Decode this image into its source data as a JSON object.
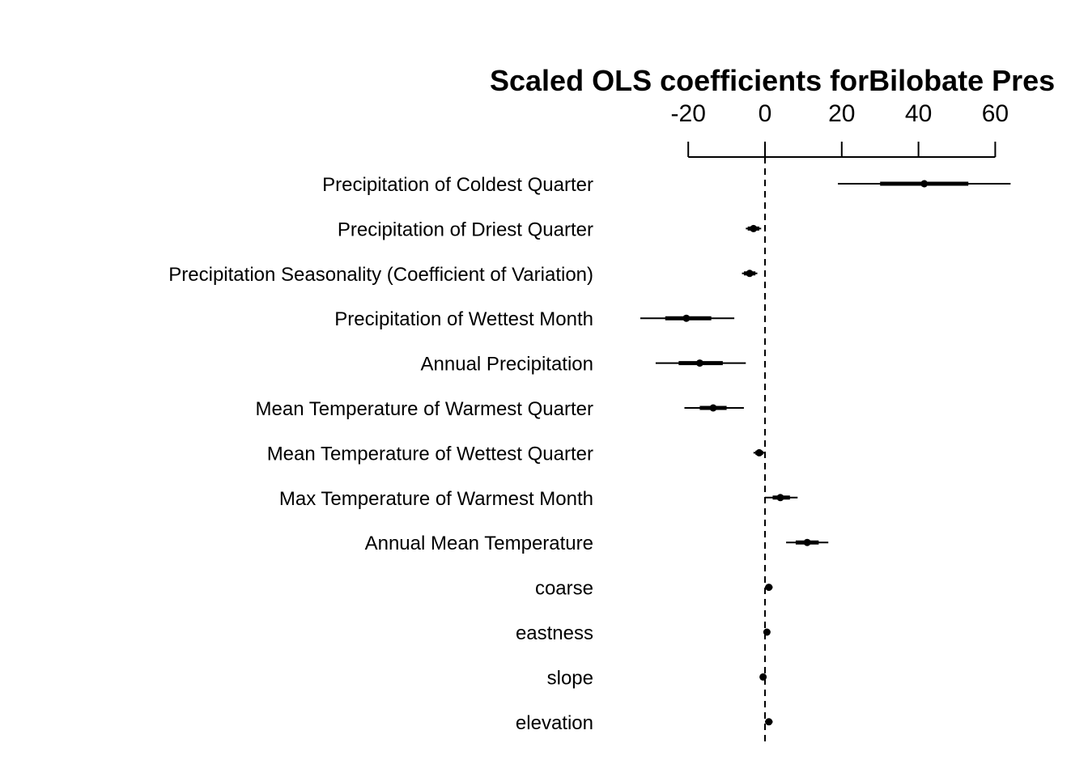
{
  "chart_data": {
    "type": "coefficient-plot",
    "title": "Scaled OLS coefficients forBilobate Pres",
    "x_ticks": [
      -20,
      0,
      20,
      40,
      60
    ],
    "reference_line": 0,
    "items": [
      {
        "label": "Precipitation of Coldest Quarter",
        "estimate": 41.5,
        "inner": [
          30,
          53
        ],
        "outer": [
          19,
          64
        ]
      },
      {
        "label": "Precipitation of Driest Quarter",
        "estimate": -3,
        "inner": [
          -4.5,
          -1.5
        ],
        "outer": [
          -5,
          -1
        ]
      },
      {
        "label": "Precipitation Seasonality (Coefficient of Variation)",
        "estimate": -4,
        "inner": [
          -5.5,
          -2.5
        ],
        "outer": [
          -6,
          -2
        ]
      },
      {
        "label": "Precipitation of Wettest Month",
        "estimate": -20.5,
        "inner": [
          -26,
          -14
        ],
        "outer": [
          -32.5,
          -8
        ]
      },
      {
        "label": "Annual Precipitation",
        "estimate": -17,
        "inner": [
          -22.5,
          -11
        ],
        "outer": [
          -28.5,
          -5
        ]
      },
      {
        "label": "Mean Temperature of Warmest Quarter",
        "estimate": -13.5,
        "inner": [
          -17,
          -10
        ],
        "outer": [
          -21,
          -5.5
        ]
      },
      {
        "label": "Mean Temperature of Wettest Quarter",
        "estimate": -1.5,
        "inner": [
          -2.5,
          -0.5
        ],
        "outer": [
          -3,
          0
        ]
      },
      {
        "label": "Max Temperature of Warmest Month",
        "estimate": 4,
        "inner": [
          2,
          6.5
        ],
        "outer": [
          0,
          8.5
        ]
      },
      {
        "label": "Annual Mean Temperature",
        "estimate": 11,
        "inner": [
          8,
          14
        ],
        "outer": [
          5.5,
          16.5
        ]
      },
      {
        "label": "coarse",
        "estimate": 1,
        "inner": [
          0.5,
          1.5
        ],
        "outer": [
          0,
          2
        ]
      },
      {
        "label": "eastness",
        "estimate": 0.5,
        "inner": [
          0.2,
          0.8
        ],
        "outer": [
          0,
          1
        ]
      },
      {
        "label": "slope",
        "estimate": -0.5,
        "inner": [
          -0.8,
          -0.2
        ],
        "outer": [
          -1,
          0
        ]
      },
      {
        "label": "elevation",
        "estimate": 1,
        "inner": [
          0.5,
          1.5
        ],
        "outer": [
          0,
          2
        ]
      }
    ]
  }
}
